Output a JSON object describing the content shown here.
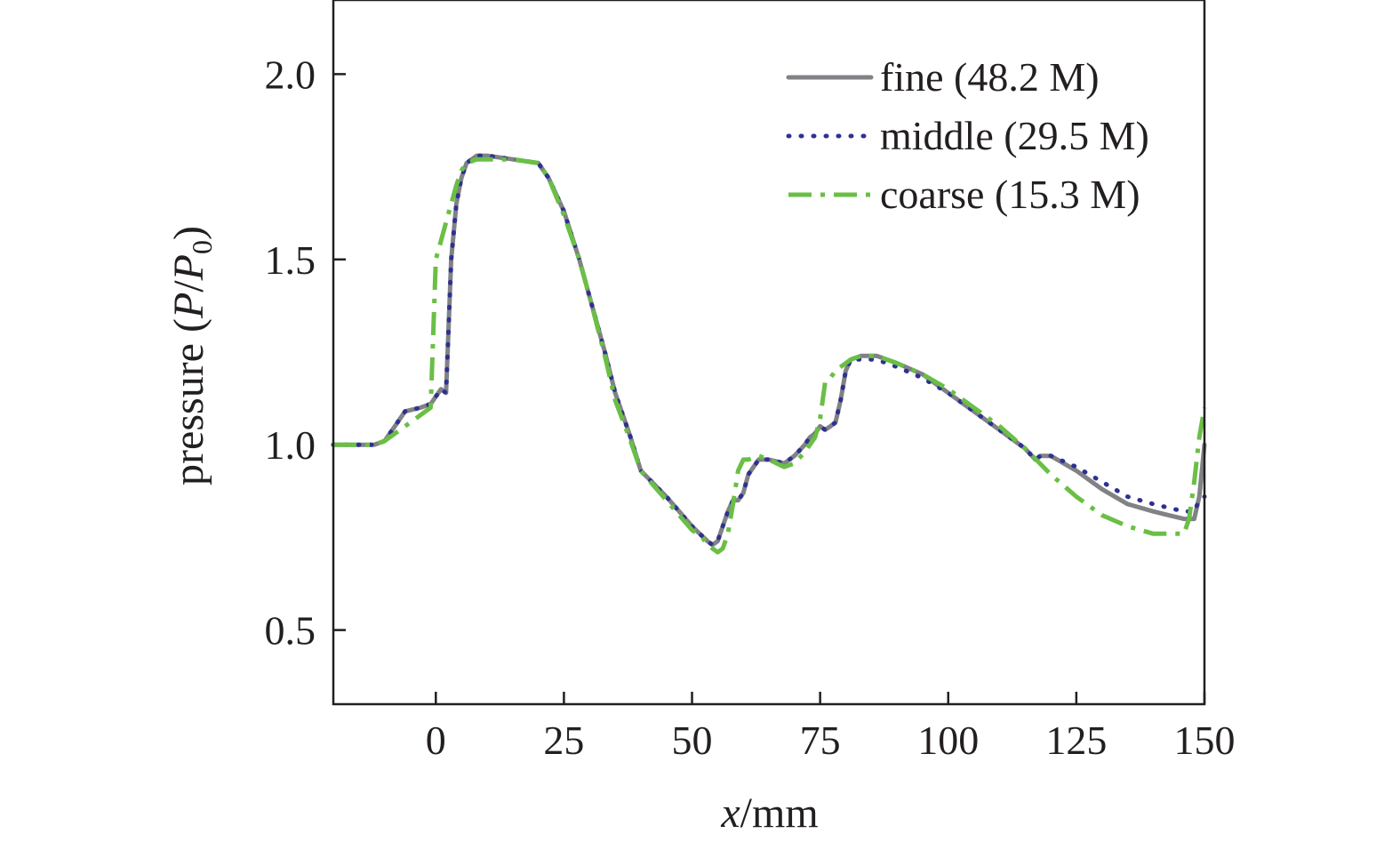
{
  "chart_data": {
    "type": "line",
    "title": "",
    "xlabel": {
      "var": "x",
      "unit": "/mm"
    },
    "ylabel": {
      "prefix": "pressure (",
      "p": "P",
      "slash": "/",
      "p0": "P",
      "sub": "0",
      "suffix": ")"
    },
    "xlim": [
      -20,
      150
    ],
    "ylim": [
      0.3,
      2.2
    ],
    "xticks": [
      0,
      25,
      50,
      75,
      100,
      125,
      150
    ],
    "xtick_labels": [
      "0",
      "25",
      "50",
      "75",
      "100",
      "125",
      "150"
    ],
    "yticks": [
      0.5,
      1.0,
      1.5,
      2.0
    ],
    "ytick_labels": [
      "0.5",
      "1.0",
      "1.5",
      "2.0"
    ],
    "grid": false,
    "legend_position": "top-right",
    "series": [
      {
        "name": "fine (48.2 M)",
        "color": "#808285",
        "style": "solid",
        "x": [
          -20,
          -12,
          -10,
          -8,
          -6,
          -3,
          -1,
          0,
          1,
          2,
          3,
          4,
          5,
          6,
          8,
          10,
          15,
          20,
          22,
          25,
          28,
          30,
          33,
          35,
          38,
          40,
          45,
          50,
          53,
          54,
          55,
          56,
          57,
          58,
          59,
          60,
          61,
          63,
          65,
          68,
          70,
          72,
          73,
          74,
          75,
          76,
          77,
          78,
          79,
          80,
          81,
          83,
          86,
          90,
          95,
          100,
          105,
          110,
          115,
          117,
          118,
          120,
          125,
          130,
          135,
          140,
          143,
          146,
          148,
          149,
          150
        ],
        "y": [
          1.0,
          1.0,
          1.01,
          1.05,
          1.09,
          1.1,
          1.11,
          1.13,
          1.15,
          1.14,
          1.5,
          1.65,
          1.72,
          1.76,
          1.78,
          1.78,
          1.77,
          1.76,
          1.72,
          1.63,
          1.5,
          1.4,
          1.25,
          1.14,
          1.02,
          0.93,
          0.86,
          0.78,
          0.74,
          0.73,
          0.74,
          0.78,
          0.82,
          0.85,
          0.85,
          0.87,
          0.92,
          0.96,
          0.96,
          0.95,
          0.97,
          1.0,
          1.02,
          1.03,
          1.05,
          1.04,
          1.05,
          1.06,
          1.12,
          1.2,
          1.23,
          1.24,
          1.24,
          1.22,
          1.19,
          1.14,
          1.09,
          1.04,
          0.99,
          0.96,
          0.97,
          0.97,
          0.93,
          0.88,
          0.84,
          0.82,
          0.81,
          0.8,
          0.8,
          0.86,
          1.0
        ]
      },
      {
        "name": "middle (29.5 M)",
        "color": "#2e3192",
        "style": "dotted",
        "x": [
          -20,
          -12,
          -10,
          -8,
          -6,
          -3,
          -1,
          0,
          1,
          2,
          3,
          4,
          5,
          6,
          8,
          10,
          15,
          20,
          22,
          25,
          28,
          30,
          33,
          35,
          38,
          40,
          45,
          50,
          53,
          54,
          55,
          56,
          57,
          58,
          59,
          60,
          61,
          63,
          65,
          68,
          70,
          72,
          73,
          74,
          75,
          76,
          77,
          78,
          79,
          80,
          81,
          83,
          86,
          90,
          95,
          100,
          105,
          110,
          115,
          117,
          118,
          120,
          125,
          130,
          135,
          140,
          143,
          146,
          148,
          149,
          150
        ],
        "y": [
          1.0,
          1.0,
          1.01,
          1.05,
          1.09,
          1.1,
          1.11,
          1.13,
          1.15,
          1.14,
          1.5,
          1.65,
          1.72,
          1.76,
          1.78,
          1.78,
          1.77,
          1.76,
          1.72,
          1.63,
          1.5,
          1.4,
          1.25,
          1.14,
          1.02,
          0.93,
          0.86,
          0.78,
          0.74,
          0.73,
          0.74,
          0.78,
          0.82,
          0.85,
          0.85,
          0.87,
          0.92,
          0.96,
          0.96,
          0.95,
          0.97,
          1.0,
          1.02,
          1.03,
          1.05,
          1.04,
          1.05,
          1.06,
          1.12,
          1.2,
          1.23,
          1.23,
          1.23,
          1.21,
          1.18,
          1.14,
          1.09,
          1.04,
          0.99,
          0.96,
          0.97,
          0.97,
          0.94,
          0.9,
          0.86,
          0.84,
          0.83,
          0.82,
          0.82,
          0.85,
          0.86
        ]
      },
      {
        "name": "coarse (15.3 M)",
        "color": "#6abf45",
        "style": "dashdot",
        "x": [
          -20,
          -12,
          -10,
          -8,
          -6,
          -3,
          -1,
          0,
          1,
          2,
          3,
          4,
          5,
          6,
          8,
          10,
          15,
          20,
          22,
          25,
          28,
          30,
          33,
          35,
          38,
          40,
          45,
          50,
          52,
          53,
          54,
          55,
          56,
          57,
          58,
          59,
          60,
          61,
          63,
          65,
          68,
          70,
          72,
          73,
          74,
          75,
          76,
          77,
          78,
          79,
          80,
          81,
          83,
          86,
          90,
          95,
          100,
          105,
          110,
          115,
          120,
          125,
          130,
          135,
          140,
          143,
          146,
          147,
          148,
          149,
          150
        ],
        "y": [
          1.0,
          1.0,
          1.01,
          1.03,
          1.05,
          1.08,
          1.1,
          1.5,
          1.55,
          1.6,
          1.65,
          1.7,
          1.74,
          1.76,
          1.77,
          1.77,
          1.77,
          1.76,
          1.72,
          1.62,
          1.5,
          1.4,
          1.24,
          1.12,
          1.01,
          0.93,
          0.85,
          0.77,
          0.75,
          0.73,
          0.72,
          0.71,
          0.72,
          0.76,
          0.84,
          0.93,
          0.96,
          0.96,
          0.97,
          0.96,
          0.94,
          0.95,
          0.98,
          1.0,
          1.02,
          1.07,
          1.17,
          1.18,
          1.2,
          1.21,
          1.22,
          1.23,
          1.24,
          1.24,
          1.22,
          1.19,
          1.15,
          1.1,
          1.05,
          0.99,
          0.92,
          0.86,
          0.81,
          0.78,
          0.76,
          0.76,
          0.76,
          0.8,
          0.9,
          1.02,
          1.1
        ]
      }
    ]
  }
}
